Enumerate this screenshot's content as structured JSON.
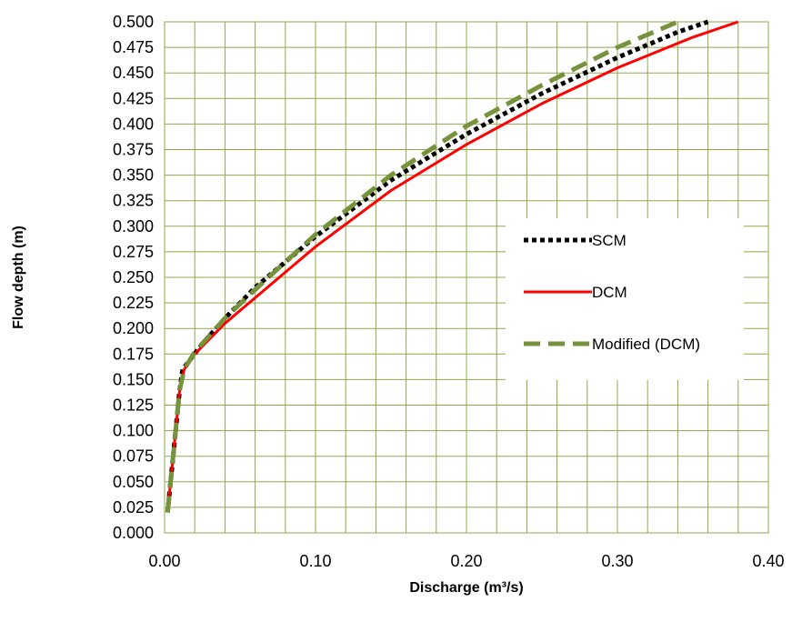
{
  "chart_data": {
    "type": "line",
    "title": "",
    "xlabel": "Discharge (m³/s)",
    "ylabel": "Flow depth (m)",
    "xlim": [
      0,
      0.4
    ],
    "ylim": [
      0,
      0.5
    ],
    "x_ticks": [
      "0.00",
      "0.10",
      "0.20",
      "0.30",
      "0.40"
    ],
    "y_ticks": [
      "0.000",
      "0.025",
      "0.050",
      "0.075",
      "0.100",
      "0.125",
      "0.150",
      "0.175",
      "0.200",
      "0.225",
      "0.250",
      "0.275",
      "0.300",
      "0.325",
      "0.350",
      "0.375",
      "0.400",
      "0.425",
      "0.450",
      "0.475",
      "0.500"
    ],
    "grid": true,
    "grid_color": "#8fa84e",
    "legend_position": "right",
    "series": [
      {
        "name": "SCM",
        "color": "#000000",
        "style": "dotted",
        "x": [
          0.002,
          0.004,
          0.006,
          0.008,
          0.01,
          0.012,
          0.025,
          0.04,
          0.06,
          0.08,
          0.1,
          0.15,
          0.2,
          0.25,
          0.3,
          0.34,
          0.36
        ],
        "y": [
          0.02,
          0.05,
          0.08,
          0.11,
          0.14,
          0.16,
          0.185,
          0.21,
          0.24,
          0.265,
          0.29,
          0.345,
          0.39,
          0.43,
          0.465,
          0.49,
          0.5
        ]
      },
      {
        "name": "DCM",
        "color": "#ff0000",
        "style": "solid",
        "x": [
          0.002,
          0.004,
          0.006,
          0.008,
          0.01,
          0.013,
          0.02,
          0.04,
          0.06,
          0.08,
          0.1,
          0.15,
          0.2,
          0.25,
          0.3,
          0.35,
          0.38
        ],
        "y": [
          0.02,
          0.05,
          0.08,
          0.11,
          0.14,
          0.16,
          0.175,
          0.205,
          0.23,
          0.255,
          0.28,
          0.335,
          0.38,
          0.42,
          0.455,
          0.485,
          0.5
        ]
      },
      {
        "name": "Modified (DCM)",
        "color": "#76923c",
        "style": "dashed",
        "x": [
          0.002,
          0.004,
          0.006,
          0.008,
          0.01,
          0.013,
          0.02,
          0.04,
          0.06,
          0.08,
          0.1,
          0.15,
          0.2,
          0.25,
          0.3,
          0.34
        ],
        "y": [
          0.02,
          0.05,
          0.08,
          0.11,
          0.14,
          0.16,
          0.177,
          0.21,
          0.238,
          0.265,
          0.292,
          0.35,
          0.398,
          0.438,
          0.475,
          0.5
        ]
      }
    ]
  }
}
